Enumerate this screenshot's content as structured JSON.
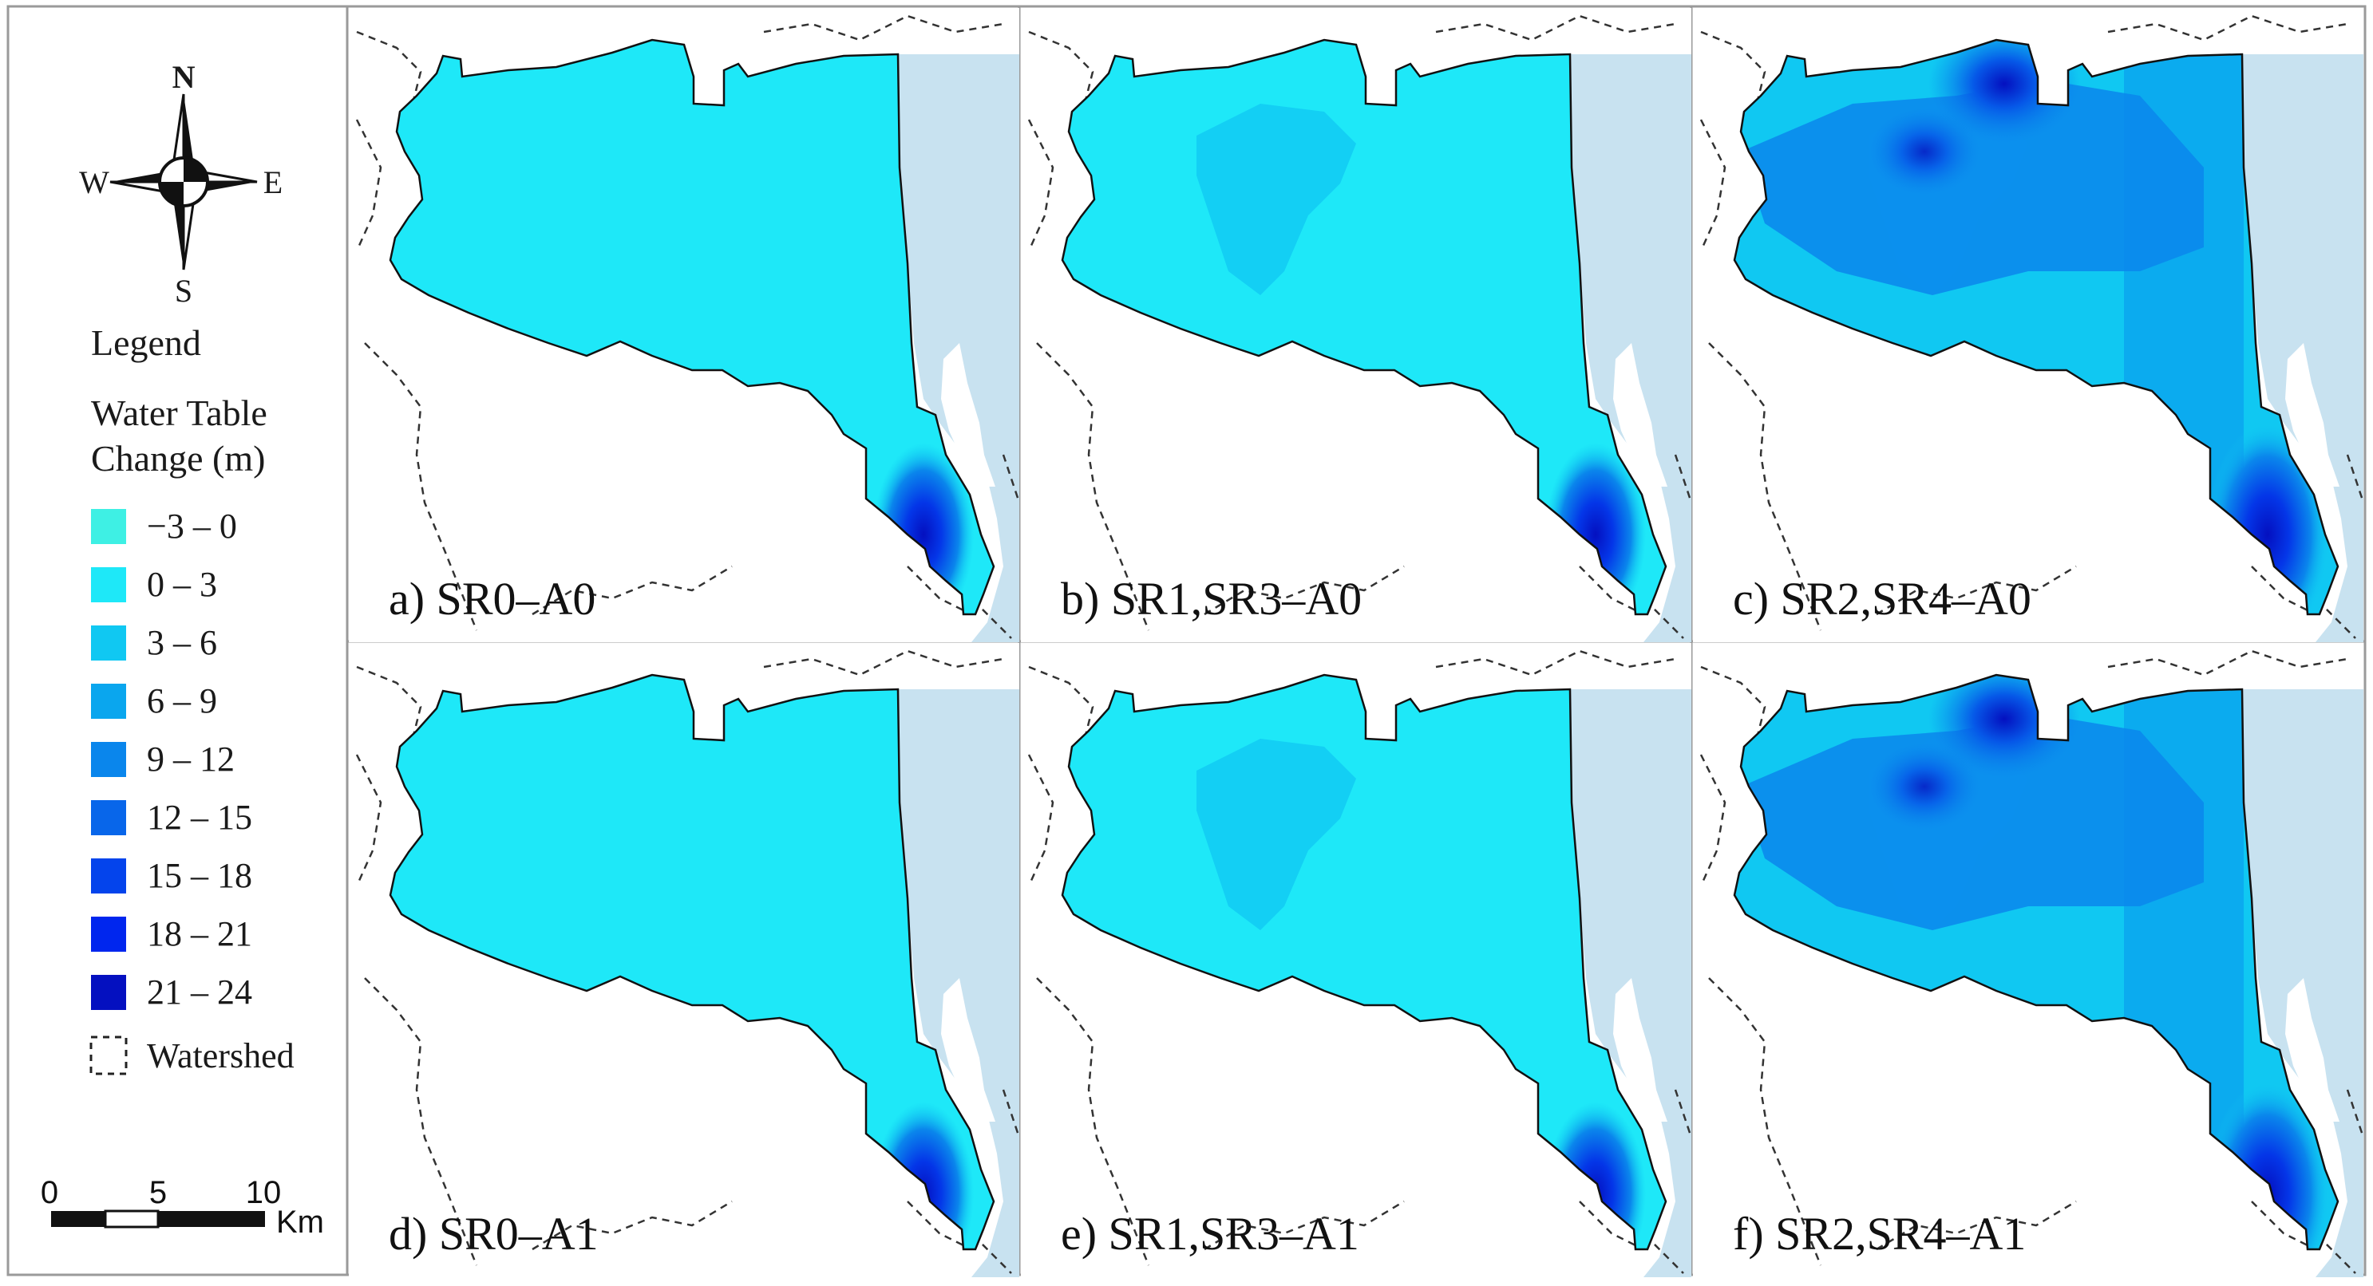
{
  "compass": {
    "north": "N",
    "south": "S",
    "east": "E",
    "west": "W"
  },
  "legend": {
    "heading": "Legend",
    "title_line1": "Water Table",
    "title_line2": "Change (m)",
    "classes": [
      {
        "label": "−3 – 0",
        "color": "#3ef0e4"
      },
      {
        "label": "0 – 3",
        "color": "#1ee8f8"
      },
      {
        "label": "3 – 6",
        "color": "#10c8f2"
      },
      {
        "label": "6 – 9",
        "color": "#0aa6ee"
      },
      {
        "label": "9 – 12",
        "color": "#0a86ec"
      },
      {
        "label": "12 – 15",
        "color": "#0866ea"
      },
      {
        "label": "15 – 18",
        "color": "#0444ec"
      },
      {
        "label": "18 – 21",
        "color": "#0026ee"
      },
      {
        "label": "21 – 24",
        "color": "#0410c0"
      }
    ],
    "watershed_label": "Watershed"
  },
  "scalebar": {
    "ticks": [
      "0",
      "5",
      "10"
    ],
    "unit": "Km"
  },
  "panels": [
    {
      "id": "a",
      "label": "a) SR0–A0",
      "intensity": 0
    },
    {
      "id": "b",
      "label": "b) SR1,SR3–A0",
      "intensity": 1
    },
    {
      "id": "c",
      "label": "c) SR2,SR4–A0",
      "intensity": 2
    },
    {
      "id": "d",
      "label": "d) SR0–A1",
      "intensity": 0
    },
    {
      "id": "e",
      "label": "e) SR1,SR3–A1",
      "intensity": 1
    },
    {
      "id": "f",
      "label": "f) SR2,SR4–A1",
      "intensity": 2
    }
  ],
  "colors": {
    "lake": "#c8e2f0",
    "border": "#111111",
    "frame": "#9a9a9a"
  }
}
